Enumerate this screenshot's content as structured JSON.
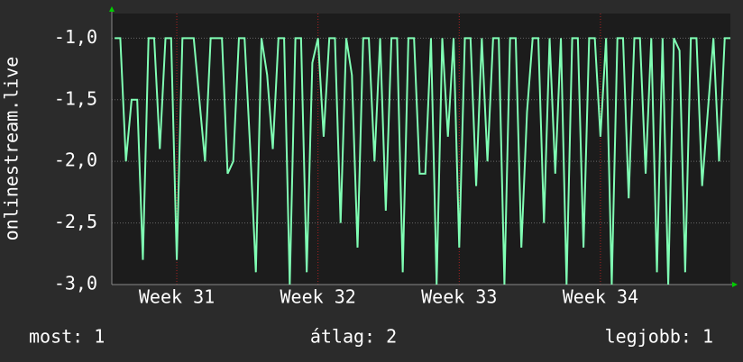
{
  "chart_data": {
    "type": "line",
    "y_label": "onlinestream.live",
    "x": [
      30.56,
      30.6,
      30.64,
      30.68,
      30.72,
      30.76,
      30.8,
      30.84,
      30.88,
      30.92,
      30.96,
      31,
      31.04,
      31.08,
      31.12,
      31.16,
      31.2,
      31.24,
      31.28,
      31.32,
      31.36,
      31.4,
      31.44,
      31.48,
      31.52,
      31.56,
      31.6,
      31.64,
      31.68,
      31.72,
      31.76,
      31.8,
      31.84,
      31.88,
      31.92,
      31.96,
      32,
      32.04,
      32.08,
      32.12,
      32.16,
      32.2,
      32.24,
      32.28,
      32.32,
      32.36,
      32.4,
      32.44,
      32.48,
      32.52,
      32.56,
      32.6,
      32.64,
      32.68,
      32.72,
      32.76,
      32.8,
      32.84,
      32.88,
      32.92,
      32.96,
      33,
      33.04,
      33.08,
      33.12,
      33.16,
      33.2,
      33.24,
      33.28,
      33.32,
      33.36,
      33.4,
      33.44,
      33.48,
      33.52,
      33.56,
      33.6,
      33.64,
      33.68,
      33.72,
      33.76,
      33.8,
      33.84,
      33.88,
      33.92,
      33.96,
      34,
      34.04,
      34.08,
      34.12,
      34.16,
      34.2,
      34.24,
      34.28,
      34.32,
      34.36,
      34.4,
      34.44,
      34.48,
      34.52,
      34.56,
      34.6,
      34.64,
      34.68,
      34.72,
      34.76,
      34.8,
      34.84,
      34.88,
      34.92
    ],
    "series": [
      {
        "color": "#80ffb4",
        "values": [
          -1,
          -1,
          -2,
          -1.5,
          -1.5,
          -2.8,
          -1,
          -1,
          -1.9,
          -1,
          -1,
          -2.8,
          -1,
          -1,
          -1,
          -1.5,
          -2,
          -1,
          -1,
          -1,
          -2.1,
          -2,
          -1,
          -1,
          -1.9,
          -2.9,
          -1,
          -1.3,
          -1.9,
          -1,
          -1,
          -3,
          -1,
          -1,
          -2.9,
          -1.2,
          -1,
          -1.8,
          -1,
          -1,
          -2.5,
          -1,
          -1.3,
          -2.7,
          -1,
          -1,
          -2,
          -1,
          -2.4,
          -1,
          -1,
          -2.9,
          -1,
          -1,
          -2.1,
          -2.1,
          -1,
          -3,
          -1,
          -1.8,
          -1,
          -2.7,
          -1,
          -1,
          -2.2,
          -1,
          -2,
          -1,
          -1,
          -3,
          -1,
          -1,
          -2.7,
          -1.6,
          -1,
          -1,
          -2.5,
          -1,
          -2.1,
          -1,
          -3,
          -1,
          -1,
          -2.7,
          -1,
          -1,
          -1.8,
          -1,
          -3,
          -1,
          -1,
          -2.3,
          -1,
          -1,
          -2.1,
          -1,
          -2.9,
          -1,
          -3,
          -1,
          -1.1,
          -2.9,
          -1,
          -1,
          -2.2,
          -1.6,
          -1,
          -2,
          -1,
          -1
        ]
      }
    ],
    "xlim": [
      30.54,
      34.92
    ],
    "xticks": [
      {
        "value": 31,
        "label": "Week 31"
      },
      {
        "value": 32,
        "label": "Week 32"
      },
      {
        "value": 33,
        "label": "Week 33"
      },
      {
        "value": 34,
        "label": "Week 34"
      }
    ],
    "ylim": [
      -3.0,
      -0.8
    ],
    "yticks": [
      {
        "value": -3,
        "label": "-3,0"
      },
      {
        "value": -2.5,
        "label": "-2,5"
      },
      {
        "value": -2,
        "label": "-2,0"
      },
      {
        "value": -1.5,
        "label": "-1,5"
      },
      {
        "value": -1,
        "label": "-1,0"
      }
    ],
    "grid": true,
    "footer": [
      "most: 1",
      "átlag: 2",
      "legjobb: 1"
    ]
  }
}
